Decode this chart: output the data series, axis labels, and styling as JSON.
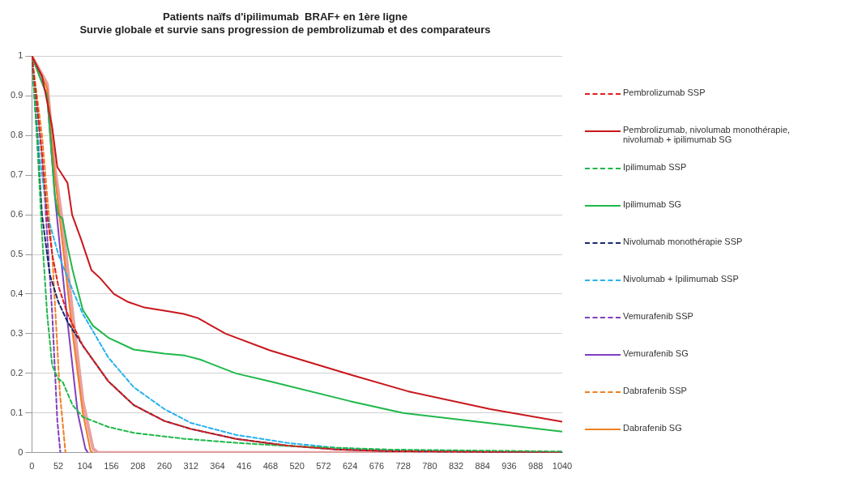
{
  "chart_data": {
    "type": "line",
    "title": "Patients naïfs d'ipilimumab  BRAF+ en 1ère ligne",
    "subtitle": "Survie globale et survie sans progression de pembrolizumab et des comparateurs",
    "xlim": [
      0,
      1040
    ],
    "xticks": [
      0,
      52,
      104,
      156,
      208,
      260,
      312,
      364,
      416,
      468,
      520,
      572,
      624,
      676,
      728,
      780,
      832,
      884,
      936,
      988,
      1040
    ],
    "ylim": [
      0,
      1
    ],
    "yticks": [
      0,
      0.1,
      0.2,
      0.3,
      0.4,
      0.5,
      0.6,
      0.7,
      0.8,
      0.9,
      1
    ],
    "grid": "y",
    "legend": "right",
    "marker": "none",
    "series": [
      {
        "name": "Pembrolizumab SSP",
        "color": "#e0201c",
        "line_style": "dashed",
        "x": [
          0,
          10,
          20,
          30,
          40,
          52,
          70,
          100,
          150,
          200,
          260,
          312,
          400,
          500,
          600,
          700,
          1040
        ],
        "values": [
          1,
          0.88,
          0.75,
          0.6,
          0.5,
          0.42,
          0.35,
          0.27,
          0.18,
          0.12,
          0.08,
          0.06,
          0.035,
          0.018,
          0.008,
          0.004,
          0
        ]
      },
      {
        "name": "Pembrolizumab, nivolumab monothérapie, nivolumab + ipilimumab SG",
        "color": "#c8171c",
        "line_style": "solid",
        "x": [
          0,
          20,
          40,
          50,
          60,
          70,
          79,
          96,
          117,
          134,
          161,
          189,
          221,
          270,
          298,
          325,
          380,
          467,
          629,
          737,
          899,
          1040
        ],
        "values": [
          1,
          0.95,
          0.82,
          0.72,
          0.7,
          0.68,
          0.6,
          0.54,
          0.46,
          0.44,
          0.4,
          0.38,
          0.366,
          0.356,
          0.35,
          0.34,
          0.3,
          0.258,
          0.195,
          0.155,
          0.11,
          0.078
        ]
      },
      {
        "name": "Ipilimumab SSP",
        "color": "#1fb84a",
        "line_style": "dashed",
        "x": [
          0,
          10,
          20,
          30,
          40,
          52,
          60,
          80,
          100,
          150,
          200,
          300,
          400,
          500,
          700,
          1040
        ],
        "values": [
          1,
          0.8,
          0.55,
          0.35,
          0.22,
          0.185,
          0.18,
          0.12,
          0.09,
          0.065,
          0.05,
          0.035,
          0.025,
          0.017,
          0.008,
          0.003
        ]
      },
      {
        "name": "Ipilimumab SG",
        "color": "#1fb84a",
        "line_style": "solid",
        "x": [
          0,
          30,
          45,
          52,
          60,
          70,
          80,
          100,
          120,
          150,
          200,
          260,
          300,
          330,
          400,
          467,
          624,
          728,
          1040
        ],
        "values": [
          1,
          0.9,
          0.65,
          0.6,
          0.59,
          0.52,
          0.46,
          0.36,
          0.32,
          0.29,
          0.26,
          0.25,
          0.245,
          0.235,
          0.2,
          0.18,
          0.13,
          0.1,
          0.053
        ]
      },
      {
        "name": "Nivolumab monothérapie SSP",
        "color": "#1a2a6c",
        "line_style": "dashed",
        "x": [
          0,
          10,
          20,
          35,
          52,
          70,
          100,
          150,
          200,
          260,
          312,
          400,
          500,
          600,
          700,
          1040
        ],
        "values": [
          1,
          0.8,
          0.6,
          0.45,
          0.38,
          0.33,
          0.27,
          0.18,
          0.12,
          0.08,
          0.06,
          0.035,
          0.018,
          0.008,
          0.004,
          0
        ]
      },
      {
        "name": "Nivolumab + Ipilimumab SSP",
        "color": "#27b2ee",
        "line_style": "dashed",
        "x": [
          0,
          15,
          30,
          52,
          80,
          100,
          150,
          200,
          260,
          312,
          400,
          500,
          600,
          700,
          1040
        ],
        "values": [
          1,
          0.75,
          0.6,
          0.5,
          0.41,
          0.35,
          0.24,
          0.165,
          0.11,
          0.075,
          0.045,
          0.025,
          0.012,
          0.006,
          0
        ]
      },
      {
        "name": "Vemurafenib SSP",
        "color": "#7f3fbf",
        "line_style": "dashed",
        "x": [
          0,
          20,
          40,
          50,
          56
        ],
        "values": [
          1,
          0.75,
          0.35,
          0.08,
          0
        ]
      },
      {
        "name": "Vemurafenib SG",
        "color": "#7f3fbf",
        "line_style": "solid",
        "x": [
          0,
          30,
          45,
          55,
          70,
          90,
          105,
          110
        ],
        "values": [
          1,
          0.9,
          0.65,
          0.52,
          0.33,
          0.1,
          0.01,
          0
        ]
      },
      {
        "name": "Dabrafenib SSP",
        "color": "#f07f22",
        "line_style": "dashed",
        "x": [
          0,
          20,
          40,
          55,
          66
        ],
        "values": [
          1,
          0.8,
          0.5,
          0.15,
          0
        ]
      },
      {
        "name": "Dabrafenib SG",
        "color": "#f07f22",
        "line_style": "solid",
        "x": [
          0,
          30,
          45,
          60,
          80,
          100,
          115,
          120
        ],
        "values": [
          1,
          0.92,
          0.7,
          0.53,
          0.3,
          0.1,
          0.005,
          0
        ]
      },
      {
        "color": "#eaa0a0",
        "line_style": "solid",
        "x": [
          0,
          30,
          45,
          60,
          80,
          100,
          120,
          130,
          1040
        ],
        "values": [
          1,
          0.93,
          0.72,
          0.58,
          0.35,
          0.13,
          0.01,
          0,
          0
        ]
      }
    ]
  }
}
